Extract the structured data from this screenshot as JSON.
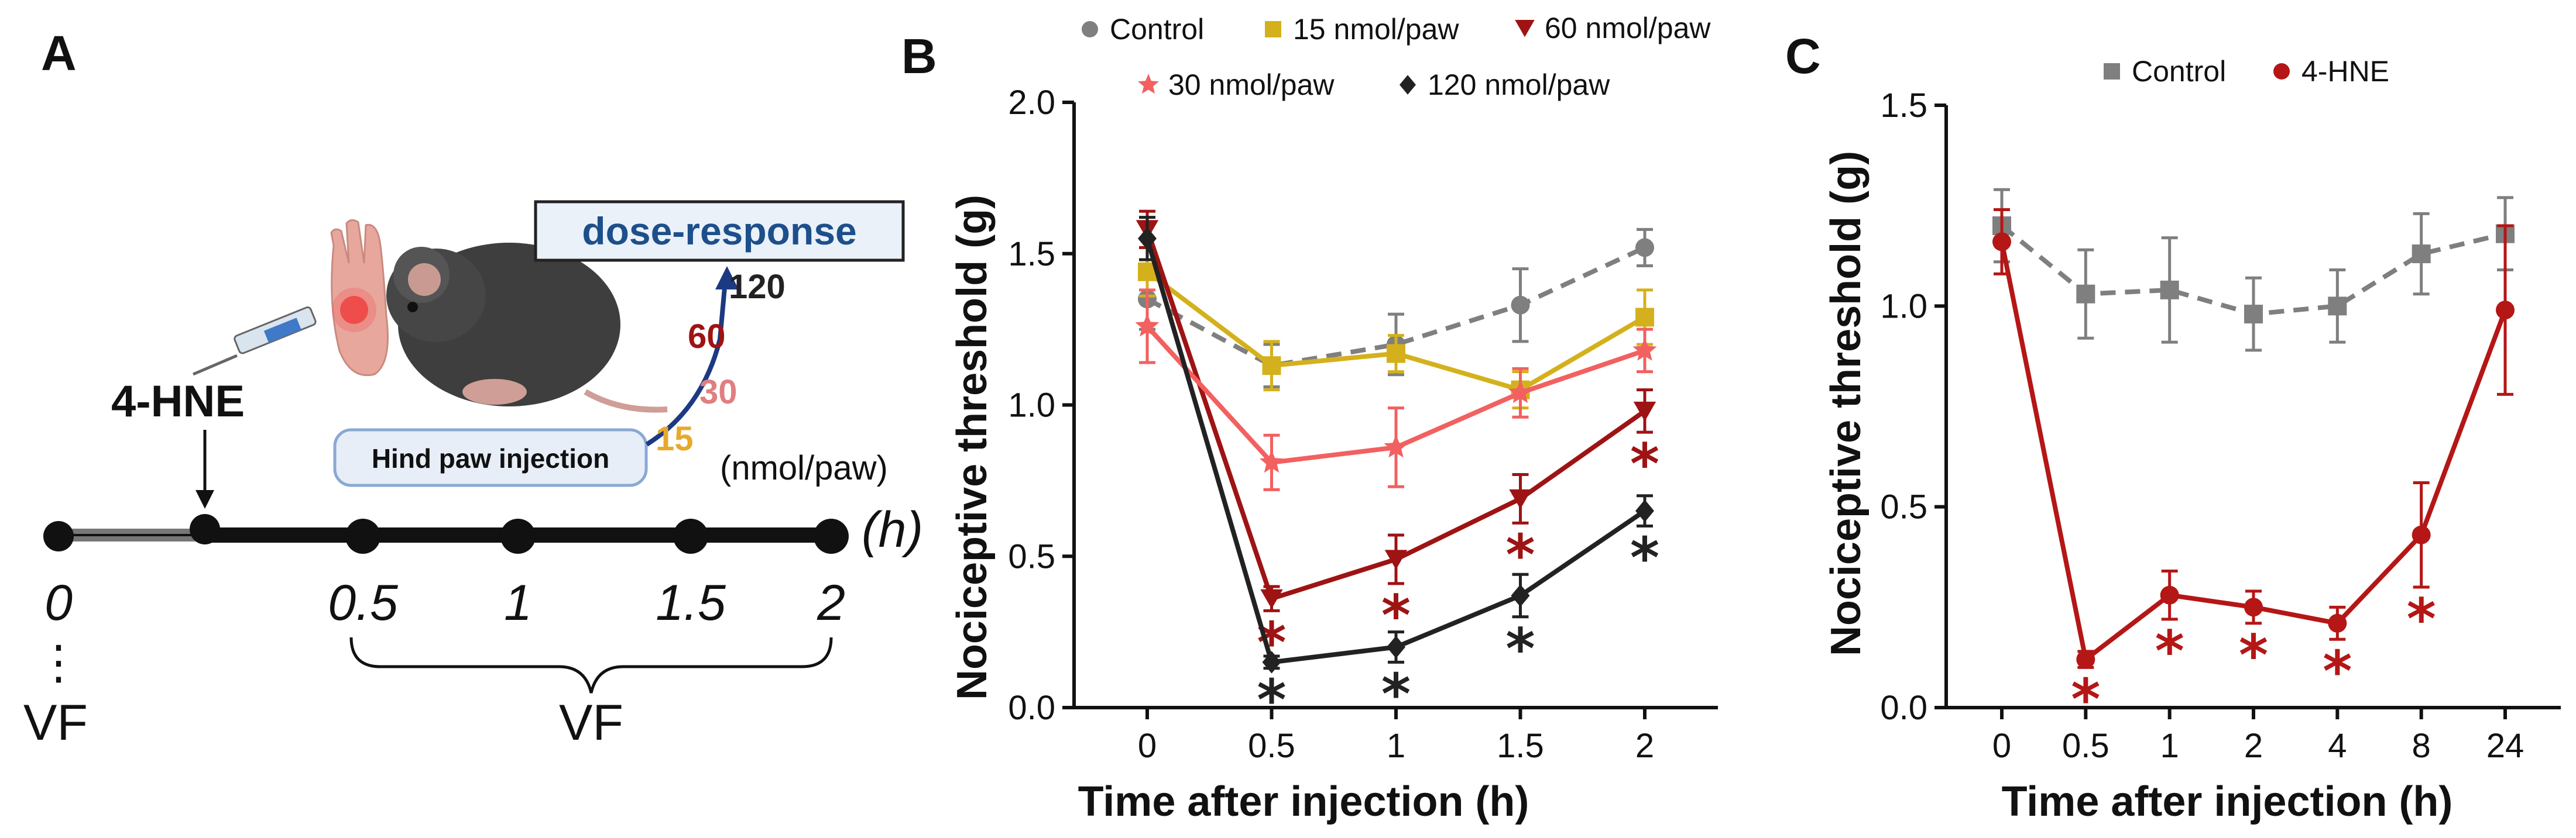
{
  "colors": {
    "control": "#7f7f7f",
    "d15": "#d4b11c",
    "d30": "#f26060",
    "d60": "#9e1313",
    "d120": "#222222",
    "hne": "#b51616",
    "doseText15": "#e8a92a",
    "doseText30": "#e07f80",
    "doseText60": "#9e1313",
    "doseText120": "#222222",
    "boxText": "#1d4f8a"
  },
  "panelA": {
    "label": "A",
    "drug": "4-HNE",
    "hind_paw": "Hind paw injection",
    "dose_response": "dose-response",
    "dose_unit": "(nmol/paw)",
    "doses": [
      "15",
      "30",
      "60",
      "120"
    ],
    "time_unit": "(h)",
    "timeline_ticks": [
      "0",
      "0.5",
      "1",
      "1.5",
      "2"
    ],
    "vf_baseline": "VF",
    "vf_brace": "VF",
    "vdots": "⋮"
  },
  "chart_data": [
    {
      "type": "line",
      "panel": "B",
      "xlabel": "Time after injection (h)",
      "ylabel": "Nociceptive threshold (g)",
      "ylim": [
        0,
        2.0
      ],
      "yticks": [
        "0.0",
        "0.5",
        "1.0",
        "1.5",
        "2.0"
      ],
      "categories": [
        "0",
        "0.5",
        "1",
        "1.5",
        "2"
      ],
      "legend": "top",
      "series": [
        {
          "name": "Control",
          "key": "control",
          "marker": "circle",
          "dash": true,
          "values": [
            1.35,
            1.13,
            1.2,
            1.33,
            1.52
          ],
          "errors": [
            0.1,
            0.07,
            0.1,
            0.12,
            0.06
          ],
          "sig": [
            false,
            false,
            false,
            false,
            false
          ]
        },
        {
          "name": "15 nmol/paw",
          "key": "d15",
          "marker": "square",
          "dash": false,
          "values": [
            1.44,
            1.13,
            1.17,
            1.05,
            1.29
          ],
          "errors": [
            0.08,
            0.08,
            0.06,
            0.06,
            0.09
          ],
          "sig": [
            false,
            false,
            false,
            false,
            false
          ]
        },
        {
          "name": "60 nmol/paw",
          "key": "d60",
          "marker": "triangle-down",
          "dash": false,
          "values": [
            1.58,
            0.36,
            0.49,
            0.69,
            0.98
          ],
          "errors": [
            0.06,
            0.04,
            0.08,
            0.08,
            0.07
          ],
          "sig": [
            false,
            true,
            true,
            true,
            true
          ]
        },
        {
          "name": "30 nmol/paw",
          "key": "d30",
          "marker": "star",
          "dash": false,
          "values": [
            1.26,
            0.81,
            0.86,
            1.04,
            1.18
          ],
          "errors": [
            0.12,
            0.09,
            0.13,
            0.08,
            0.07
          ],
          "sig": [
            false,
            false,
            false,
            false,
            false
          ]
        },
        {
          "name": "120 nmol/paw",
          "key": "d120",
          "marker": "diamond",
          "dash": false,
          "values": [
            1.55,
            0.15,
            0.2,
            0.37,
            0.65
          ],
          "errors": [
            0.07,
            0.02,
            0.05,
            0.07,
            0.05
          ],
          "sig": [
            false,
            true,
            true,
            true,
            true
          ]
        }
      ],
      "significance_marker": "*"
    },
    {
      "type": "line",
      "panel": "C",
      "xlabel": "Time after injection (h)",
      "ylabel": "Nociceptive threshold (g)",
      "ylim": [
        0,
        1.5
      ],
      "yticks": [
        "0.0",
        "0.5",
        "1.0",
        "1.5"
      ],
      "categories": [
        "0",
        "0.5",
        "1",
        "2",
        "4",
        "8",
        "24"
      ],
      "legend": "top",
      "series": [
        {
          "name": "Control",
          "key": "control",
          "marker": "square",
          "dash": true,
          "values": [
            1.2,
            1.03,
            1.04,
            0.98,
            1.0,
            1.13,
            1.18
          ],
          "errors": [
            0.09,
            0.11,
            0.13,
            0.09,
            0.09,
            0.1,
            0.09
          ],
          "sig": [
            false,
            false,
            false,
            false,
            false,
            false,
            false
          ]
        },
        {
          "name": "4-HNE",
          "key": "hne",
          "marker": "circle",
          "dash": false,
          "values": [
            1.16,
            0.12,
            0.28,
            0.25,
            0.21,
            0.43,
            0.99
          ],
          "errors": [
            0.08,
            0.02,
            0.06,
            0.04,
            0.04,
            0.13,
            0.21
          ],
          "sig": [
            false,
            true,
            true,
            true,
            true,
            true,
            false
          ]
        }
      ],
      "significance_marker": "*"
    }
  ]
}
